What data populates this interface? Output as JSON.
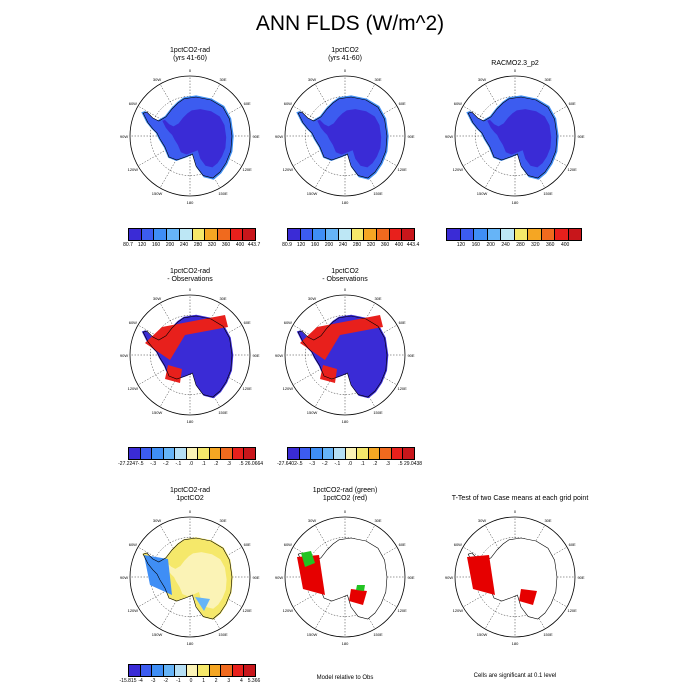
{
  "title": "ANN FLDS (W/m^2)",
  "panels": {
    "p1": {
      "title1": "1pctCO2-rad",
      "title2": "(yrs 41-60)"
    },
    "p2": {
      "title1": "1pctCO2",
      "title2": "(yrs 41-60)"
    },
    "p3": {
      "title1": "RACMO2.3_p2"
    },
    "p4": {
      "title1": "1pctCO2-rad",
      "title2": "- Observations"
    },
    "p5": {
      "title1": "1pctCO2",
      "title2": "- Observations"
    },
    "p7": {
      "title1": "1pctCO2-rad",
      "title2": "1pctCO2"
    },
    "p8": {
      "title1": "1pctCO2-rad (green)",
      "title2": "1pctCO2 (red)"
    },
    "p9": {
      "title1": "T-Test of two Case means at each grid point"
    }
  },
  "map_labels": {
    "lon": [
      "0",
      "30E",
      "60E",
      "90E",
      "120E",
      "150E",
      "180",
      "150W",
      "120W",
      "90W",
      "60W",
      "30W"
    ]
  },
  "legends": {
    "p1": [
      "80.7",
      "120",
      "160",
      "200",
      "240",
      "280",
      "320",
      "360",
      "400",
      "443.7"
    ],
    "p2": [
      "80.9",
      "120",
      "160",
      "200",
      "240",
      "280",
      "320",
      "360",
      "400",
      "443.4"
    ],
    "p3": [
      "120",
      "160",
      "200",
      "240",
      "280",
      "320",
      "360",
      "400"
    ],
    "p4": [
      "-27.2247",
      "-.5",
      "-.3",
      "-.2",
      "-.1",
      ".0",
      ".1",
      ".2",
      ".3",
      ".5",
      "26.0664"
    ],
    "p5": [
      "-27.6402",
      "-.5",
      "-.3",
      "-.2",
      "-.1",
      ".0",
      ".1",
      ".2",
      ".3",
      ".5",
      "29.0438"
    ],
    "p7": [
      "-15.815",
      "-4",
      "-3",
      "-2",
      "-1",
      "0",
      "1",
      "2",
      "3",
      "4",
      "5.366"
    ]
  },
  "notes": {
    "p8": "Model relative to Obs",
    "p9": "Cells are significant at 0.1 level"
  },
  "colors": {
    "abs_scale": [
      "#3a2bd6",
      "#3c5cf0",
      "#3f8ef5",
      "#66b4f7",
      "#bde7f5",
      "#f5e86a",
      "#f5a623",
      "#f06a1e",
      "#e8201c",
      "#c8161b"
    ],
    "diff_scale": [
      "#3a2bd6",
      "#3c5cf0",
      "#3f8ef5",
      "#66b4f7",
      "#b5dff5",
      "#fbf3b6",
      "#f5e86a",
      "#f5a623",
      "#f06a1e",
      "#e8201c",
      "#c8161b"
    ],
    "signif_red": "#e60000",
    "signif_green": "#22c322"
  }
}
